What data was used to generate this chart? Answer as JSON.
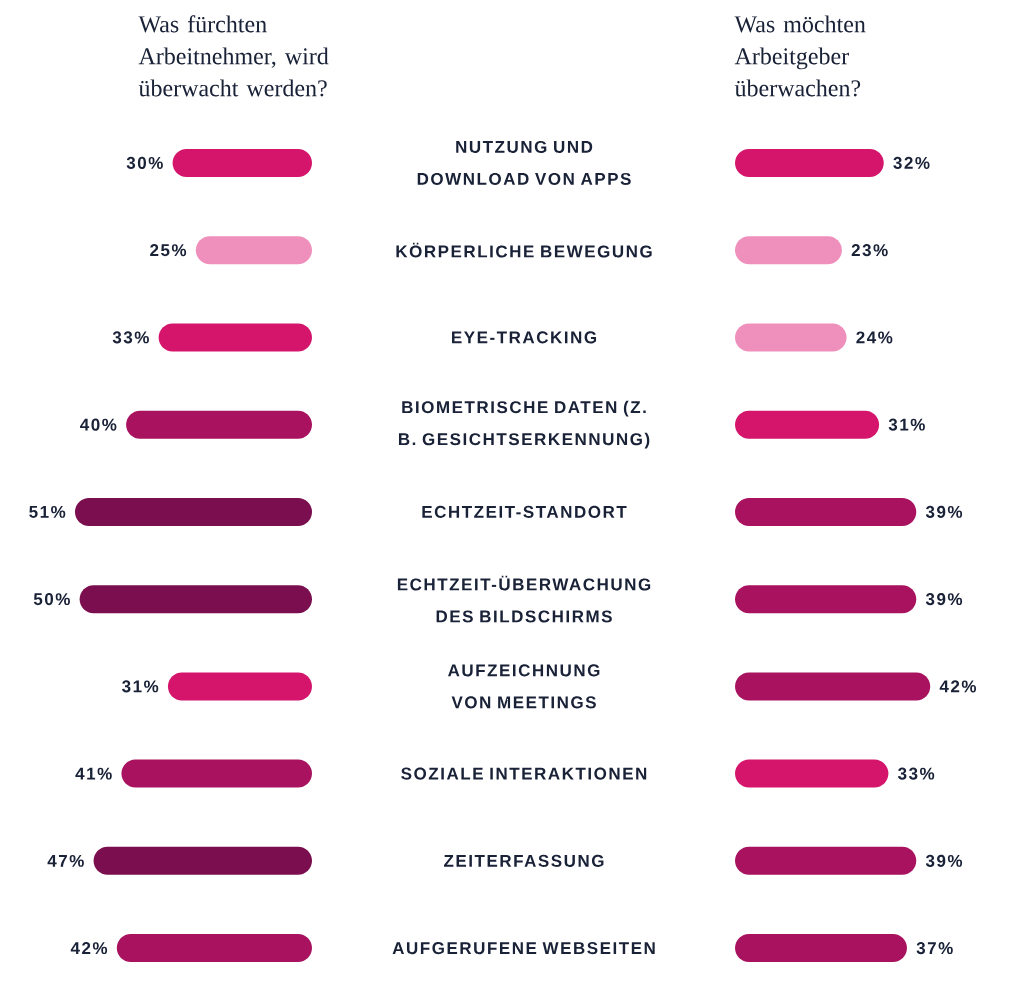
{
  "chart_data": [
    {
      "type": "bar",
      "orientation": "horizontal",
      "title": "Was fürchten Arbeitnehmer, wird überwacht werden?",
      "categories": [
        "NUTZUNG UND DOWNLOAD VON APPS",
        "KÖRPERLICHE BEWEGUNG",
        "EYE-TRACKING",
        "BIOMETRISCHE DATEN (Z. B. GESICHTSERKENNUNG)",
        "ECHTZEIT-STANDORT",
        "ECHTZEIT-ÜBERWACHUNG DES BILDSCHIRMS",
        "AUFZEICHNUNG VON MEETINGS",
        "SOZIALE INTERAKTIONEN",
        "ZEITERFASSUNG",
        "AUFGERUFENE WEBSEITEN"
      ],
      "values": [
        30,
        25,
        33,
        40,
        51,
        50,
        31,
        41,
        47,
        42
      ],
      "colors": [
        "#d4156b",
        "#ef8fbb",
        "#d4156b",
        "#a8125f",
        "#7a0e4f",
        "#7a0e4f",
        "#d4156b",
        "#a8125f",
        "#7a0e4f",
        "#a8125f"
      ],
      "value_labels": [
        "30%",
        "25%",
        "33%",
        "40%",
        "51%",
        "50%",
        "31%",
        "41%",
        "47%",
        "42%"
      ],
      "tick_labels": "y"
    },
    {
      "type": "bar",
      "orientation": "horizontal",
      "title": "Was möchten Arbeitgeber überwachen?",
      "values": [
        32,
        23,
        24,
        31,
        39,
        39,
        42,
        33,
        39,
        37
      ],
      "colors": [
        "#d4156b",
        "#ef8fbb",
        "#ef8fbb",
        "#d4156b",
        "#a8125f",
        "#a8125f",
        "#a8125f",
        "#d4156b",
        "#a8125f",
        "#a8125f"
      ],
      "value_labels": [
        "32%",
        "23%",
        "24%",
        "31%",
        "39%",
        "39%",
        "42%",
        "33%",
        "39%",
        "37%"
      ],
      "tick_labels": false
    }
  ]
}
